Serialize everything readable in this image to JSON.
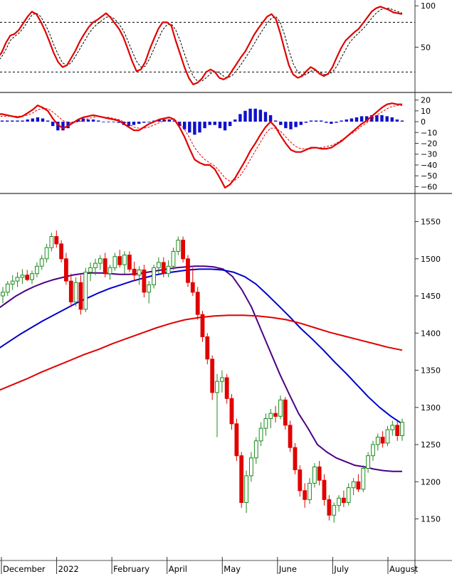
{
  "chart_data": [
    {
      "panel": "stochastic",
      "type": "line",
      "yticks": [
        100,
        50
      ],
      "ylim": [
        -3,
        107
      ],
      "reference_levels": [
        80,
        20
      ],
      "series": [
        {
          "values": [
            37,
            43,
            55,
            64,
            66,
            71,
            79,
            87,
            93,
            90,
            81,
            70,
            57,
            43,
            32,
            26,
            28,
            37,
            46,
            57,
            66,
            74,
            80,
            83,
            87,
            91,
            86,
            79,
            72,
            62,
            48,
            33,
            21,
            23,
            32,
            47,
            60,
            72,
            80,
            80,
            76,
            58,
            42,
            26,
            13,
            5,
            7,
            12,
            20,
            23,
            20,
            13,
            11,
            14,
            22,
            30,
            38,
            45,
            55,
            65,
            73,
            80,
            87,
            90,
            84,
            67,
            47,
            28,
            17,
            13,
            15,
            21,
            26,
            23,
            18,
            15,
            18,
            26,
            38,
            49,
            58,
            63,
            68,
            72,
            79,
            86,
            93,
            97,
            99,
            97,
            95,
            92,
            91,
            90
          ]
        },
        {
          "values": [
            32,
            38,
            47,
            58,
            63,
            67,
            73,
            81,
            89,
            91,
            87,
            78,
            67,
            53,
            41,
            31,
            28,
            31,
            39,
            48,
            57,
            66,
            73,
            78,
            82,
            86,
            87,
            84,
            78,
            70,
            58,
            45,
            33,
            26,
            27,
            36,
            48,
            60,
            71,
            77,
            78,
            71,
            58,
            42,
            27,
            15,
            9,
            9,
            13,
            18,
            21,
            19,
            15,
            13,
            16,
            22,
            29,
            37,
            45,
            54,
            63,
            71,
            79,
            85,
            87,
            80,
            65,
            46,
            30,
            20,
            16,
            17,
            21,
            22,
            20,
            17,
            17,
            20,
            27,
            37,
            47,
            56,
            62,
            67,
            72,
            78,
            85,
            91,
            95,
            97,
            97,
            95,
            93,
            91
          ]
        }
      ]
    },
    {
      "panel": "macd",
      "type": "line",
      "yticks": [
        20,
        10,
        0,
        -10,
        -20,
        -30,
        -40,
        -50,
        -60
      ],
      "ylim": [
        -65,
        25
      ],
      "series": [
        {
          "values": [
            7,
            7,
            6,
            5,
            4,
            5,
            8,
            11,
            15,
            13,
            10,
            3,
            -3,
            -6,
            -4,
            -1,
            2,
            4,
            5,
            6,
            5,
            4,
            3,
            2,
            1,
            -2,
            -5,
            -8,
            -8,
            -5,
            -2,
            0,
            2,
            3,
            4,
            2,
            -5,
            -14,
            -25,
            -35,
            -38,
            -40,
            -40,
            -44,
            -52,
            -61,
            -58,
            -52,
            -44,
            -36,
            -27,
            -20,
            -12,
            -5,
            0,
            -5,
            -13,
            -20,
            -26,
            -28,
            -28,
            -26,
            -24,
            -24,
            -25,
            -25,
            -24,
            -21,
            -18,
            -14,
            -10,
            -6,
            -2,
            1,
            5,
            9,
            13,
            16,
            17,
            16,
            16
          ]
        },
        {
          "values": [
            4,
            5,
            5,
            5,
            5,
            5,
            6,
            8,
            11,
            12,
            12,
            9,
            5,
            1,
            -1,
            -1,
            0,
            1,
            3,
            4,
            5,
            4,
            4,
            3,
            2,
            0,
            -2,
            -5,
            -6,
            -6,
            -5,
            -3,
            -1,
            1,
            2,
            2,
            -1,
            -7,
            -15,
            -24,
            -30,
            -35,
            -38,
            -41,
            -46,
            -52,
            -55,
            -54,
            -50,
            -43,
            -35,
            -27,
            -19,
            -11,
            -6,
            -6,
            -9,
            -14,
            -19,
            -23,
            -25,
            -25,
            -25,
            -24,
            -24,
            -23,
            -22,
            -20,
            -17,
            -14,
            -11,
            -8,
            -4,
            -1,
            2,
            6,
            9,
            12,
            14,
            15,
            15
          ]
        },
        {
          "values": [
            1,
            1,
            1,
            1,
            1,
            1,
            2,
            3,
            4,
            3,
            1,
            -4,
            -8,
            -8,
            -6,
            -1,
            2,
            3,
            2,
            2,
            1,
            0,
            0,
            0,
            -1,
            -3,
            -4,
            -3,
            -2,
            -1,
            0,
            1,
            2,
            2,
            2,
            1,
            -4,
            -7,
            -10,
            -12,
            -10,
            -6,
            -3,
            -3,
            -6,
            -8,
            -4,
            2,
            7,
            10,
            12,
            12,
            11,
            9,
            6,
            1,
            -3,
            -6,
            -7,
            -5,
            -3,
            -1,
            1,
            1,
            1,
            -1,
            -2,
            -1,
            1,
            2,
            3,
            4,
            5,
            5,
            6,
            6,
            6,
            5,
            4,
            2,
            1
          ]
        }
      ]
    },
    {
      "panel": "price",
      "type": "candlestick",
      "yticks": [
        1550,
        1500,
        1450,
        1400,
        1350,
        1300,
        1250,
        1200,
        1150
      ],
      "ylim": [
        1095,
        1585
      ],
      "xticks": [
        "December",
        "2022",
        "February",
        "April",
        "May",
        "June",
        "July",
        "August"
      ],
      "candles": [
        {
          "o": 1450,
          "h": 1462,
          "l": 1440,
          "c": 1455
        },
        {
          "o": 1455,
          "h": 1470,
          "l": 1450,
          "c": 1466
        },
        {
          "o": 1466,
          "h": 1478,
          "l": 1458,
          "c": 1470
        },
        {
          "o": 1470,
          "h": 1482,
          "l": 1462,
          "c": 1475
        },
        {
          "o": 1475,
          "h": 1486,
          "l": 1466,
          "c": 1478
        },
        {
          "o": 1478,
          "h": 1485,
          "l": 1470,
          "c": 1472
        },
        {
          "o": 1472,
          "h": 1484,
          "l": 1466,
          "c": 1480
        },
        {
          "o": 1480,
          "h": 1495,
          "l": 1475,
          "c": 1490
        },
        {
          "o": 1490,
          "h": 1505,
          "l": 1485,
          "c": 1500
        },
        {
          "o": 1500,
          "h": 1520,
          "l": 1495,
          "c": 1515
        },
        {
          "o": 1515,
          "h": 1535,
          "l": 1510,
          "c": 1530
        },
        {
          "o": 1530,
          "h": 1538,
          "l": 1515,
          "c": 1520
        },
        {
          "o": 1520,
          "h": 1525,
          "l": 1495,
          "c": 1500
        },
        {
          "o": 1500,
          "h": 1508,
          "l": 1465,
          "c": 1470
        },
        {
          "o": 1470,
          "h": 1480,
          "l": 1435,
          "c": 1442
        },
        {
          "o": 1442,
          "h": 1475,
          "l": 1436,
          "c": 1468
        },
        {
          "o": 1468,
          "h": 1478,
          "l": 1425,
          "c": 1432
        },
        {
          "o": 1432,
          "h": 1488,
          "l": 1428,
          "c": 1482
        },
        {
          "o": 1482,
          "h": 1495,
          "l": 1470,
          "c": 1488
        },
        {
          "o": 1488,
          "h": 1500,
          "l": 1478,
          "c": 1494
        },
        {
          "o": 1494,
          "h": 1505,
          "l": 1485,
          "c": 1500
        },
        {
          "o": 1500,
          "h": 1508,
          "l": 1475,
          "c": 1480
        },
        {
          "o": 1480,
          "h": 1492,
          "l": 1472,
          "c": 1488
        },
        {
          "o": 1488,
          "h": 1508,
          "l": 1484,
          "c": 1503
        },
        {
          "o": 1503,
          "h": 1512,
          "l": 1488,
          "c": 1492
        },
        {
          "o": 1492,
          "h": 1510,
          "l": 1480,
          "c": 1505
        },
        {
          "o": 1505,
          "h": 1510,
          "l": 1482,
          "c": 1486
        },
        {
          "o": 1486,
          "h": 1496,
          "l": 1470,
          "c": 1478
        },
        {
          "o": 1478,
          "h": 1490,
          "l": 1465,
          "c": 1485
        },
        {
          "o": 1485,
          "h": 1492,
          "l": 1448,
          "c": 1455
        },
        {
          "o": 1455,
          "h": 1470,
          "l": 1440,
          "c": 1465
        },
        {
          "o": 1465,
          "h": 1492,
          "l": 1460,
          "c": 1488
        },
        {
          "o": 1488,
          "h": 1502,
          "l": 1480,
          "c": 1495
        },
        {
          "o": 1495,
          "h": 1502,
          "l": 1475,
          "c": 1480
        },
        {
          "o": 1480,
          "h": 1498,
          "l": 1475,
          "c": 1490
        },
        {
          "o": 1490,
          "h": 1515,
          "l": 1485,
          "c": 1510
        },
        {
          "o": 1510,
          "h": 1530,
          "l": 1505,
          "c": 1525
        },
        {
          "o": 1525,
          "h": 1530,
          "l": 1495,
          "c": 1500
        },
        {
          "o": 1500,
          "h": 1505,
          "l": 1462,
          "c": 1468
        },
        {
          "o": 1468,
          "h": 1488,
          "l": 1450,
          "c": 1455
        },
        {
          "o": 1455,
          "h": 1462,
          "l": 1418,
          "c": 1425
        },
        {
          "o": 1425,
          "h": 1430,
          "l": 1388,
          "c": 1395
        },
        {
          "o": 1395,
          "h": 1400,
          "l": 1358,
          "c": 1365
        },
        {
          "o": 1365,
          "h": 1370,
          "l": 1310,
          "c": 1320
        },
        {
          "o": 1320,
          "h": 1345,
          "l": 1260,
          "c": 1335
        },
        {
          "o": 1335,
          "h": 1350,
          "l": 1320,
          "c": 1340
        },
        {
          "o": 1340,
          "h": 1345,
          "l": 1305,
          "c": 1312
        },
        {
          "o": 1312,
          "h": 1318,
          "l": 1270,
          "c": 1278
        },
        {
          "o": 1278,
          "h": 1285,
          "l": 1228,
          "c": 1235
        },
        {
          "o": 1235,
          "h": 1240,
          "l": 1165,
          "c": 1172
        },
        {
          "o": 1172,
          "h": 1215,
          "l": 1158,
          "c": 1208
        },
        {
          "o": 1208,
          "h": 1240,
          "l": 1200,
          "c": 1232
        },
        {
          "o": 1232,
          "h": 1260,
          "l": 1224,
          "c": 1255
        },
        {
          "o": 1255,
          "h": 1280,
          "l": 1248,
          "c": 1272
        },
        {
          "o": 1272,
          "h": 1292,
          "l": 1262,
          "c": 1285
        },
        {
          "o": 1285,
          "h": 1298,
          "l": 1272,
          "c": 1292
        },
        {
          "o": 1292,
          "h": 1302,
          "l": 1280,
          "c": 1288
        },
        {
          "o": 1288,
          "h": 1316,
          "l": 1284,
          "c": 1310
        },
        {
          "o": 1310,
          "h": 1314,
          "l": 1270,
          "c": 1276
        },
        {
          "o": 1276,
          "h": 1282,
          "l": 1240,
          "c": 1246
        },
        {
          "o": 1246,
          "h": 1252,
          "l": 1210,
          "c": 1216
        },
        {
          "o": 1216,
          "h": 1222,
          "l": 1180,
          "c": 1188
        },
        {
          "o": 1188,
          "h": 1198,
          "l": 1165,
          "c": 1176
        },
        {
          "o": 1176,
          "h": 1205,
          "l": 1170,
          "c": 1198
        },
        {
          "o": 1198,
          "h": 1225,
          "l": 1192,
          "c": 1220
        },
        {
          "o": 1220,
          "h": 1228,
          "l": 1195,
          "c": 1202
        },
        {
          "o": 1202,
          "h": 1210,
          "l": 1168,
          "c": 1176
        },
        {
          "o": 1176,
          "h": 1182,
          "l": 1148,
          "c": 1155
        },
        {
          "o": 1155,
          "h": 1172,
          "l": 1145,
          "c": 1168
        },
        {
          "o": 1168,
          "h": 1182,
          "l": 1160,
          "c": 1178
        },
        {
          "o": 1178,
          "h": 1188,
          "l": 1166,
          "c": 1172
        },
        {
          "o": 1172,
          "h": 1198,
          "l": 1168,
          "c": 1192
        },
        {
          "o": 1192,
          "h": 1205,
          "l": 1182,
          "c": 1200
        },
        {
          "o": 1200,
          "h": 1210,
          "l": 1186,
          "c": 1190
        },
        {
          "o": 1190,
          "h": 1222,
          "l": 1186,
          "c": 1218
        },
        {
          "o": 1218,
          "h": 1240,
          "l": 1212,
          "c": 1235
        },
        {
          "o": 1235,
          "h": 1255,
          "l": 1228,
          "c": 1250
        },
        {
          "o": 1250,
          "h": 1265,
          "l": 1242,
          "c": 1260
        },
        {
          "o": 1260,
          "h": 1268,
          "l": 1246,
          "c": 1252
        },
        {
          "o": 1252,
          "h": 1275,
          "l": 1248,
          "c": 1270
        },
        {
          "o": 1270,
          "h": 1282,
          "l": 1262,
          "c": 1276
        },
        {
          "o": 1276,
          "h": 1282,
          "l": 1255,
          "c": 1262
        },
        {
          "o": 1262,
          "h": 1285,
          "l": 1255,
          "c": 1280
        }
      ],
      "moving_averages": [
        {
          "color": "#4b0082",
          "values": [
            1432,
            1441,
            1450,
            1457,
            1463,
            1468,
            1472,
            1475,
            1478,
            1480,
            1481,
            1481,
            1480,
            1479,
            1479,
            1480,
            1482,
            1484,
            1486,
            1488,
            1489,
            1490,
            1490,
            1489,
            1486,
            1476,
            1458,
            1435,
            1405,
            1375,
            1345,
            1318,
            1292,
            1272,
            1250,
            1240,
            1232,
            1227,
            1222,
            1220,
            1217,
            1215,
            1214,
            1214
          ]
        },
        {
          "color": "#0000cc",
          "values": [
            1378,
            1388,
            1398,
            1407,
            1416,
            1424,
            1432,
            1440,
            1447,
            1454,
            1460,
            1465,
            1470,
            1474,
            1478,
            1481,
            1483,
            1485,
            1486,
            1486,
            1485,
            1482,
            1476,
            1466,
            1452,
            1437,
            1422,
            1406,
            1392,
            1377,
            1361,
            1346,
            1330,
            1314,
            1300,
            1288,
            1278
          ]
        },
        {
          "color": "#e00000",
          "values": [
            1322,
            1330,
            1338,
            1347,
            1355,
            1363,
            1371,
            1378,
            1386,
            1393,
            1400,
            1407,
            1413,
            1418,
            1421,
            1423,
            1424,
            1424,
            1423,
            1421,
            1418,
            1413,
            1407,
            1401,
            1396,
            1391,
            1386,
            1381,
            1377
          ]
        }
      ]
    }
  ]
}
